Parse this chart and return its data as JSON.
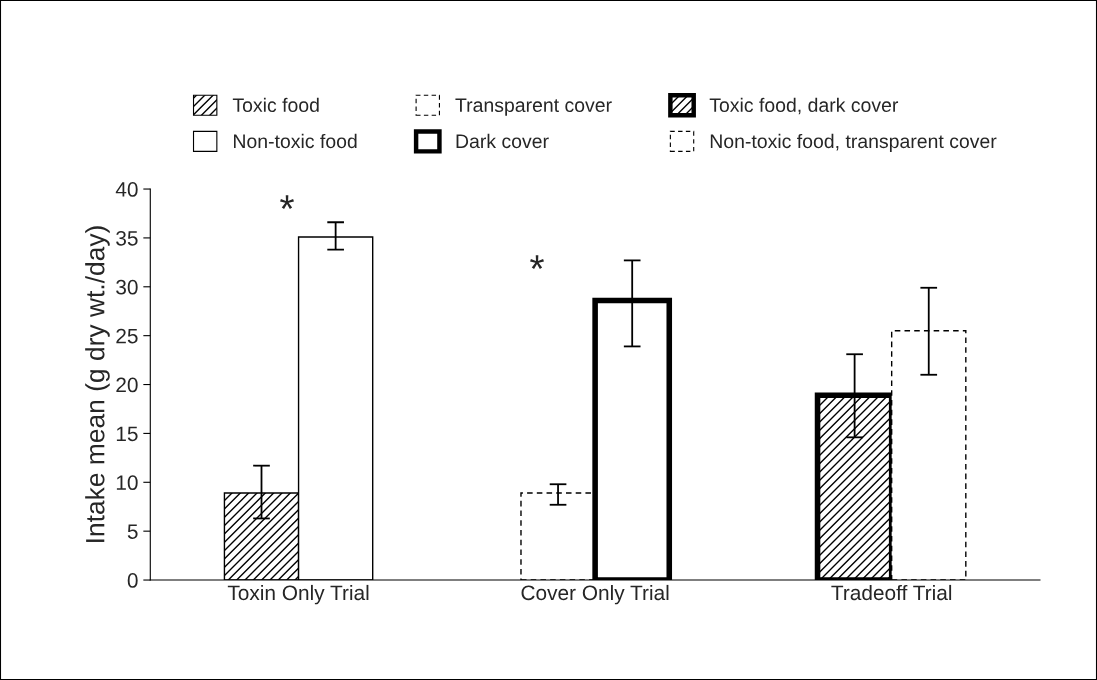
{
  "chart_data": {
    "type": "bar",
    "ylabel": "Intake mean (g dry wt./day)",
    "categories": [
      "Toxin Only Trial",
      "Cover Only Trial",
      "Tradeoff Trial"
    ],
    "series": [
      {
        "name": "Toxic food",
        "color": "#000000",
        "values": [
          8.9,
          null,
          null
        ],
        "errors": [
          [
            6.3,
            11.7
          ],
          null,
          null
        ],
        "line_style": "solid"
      },
      {
        "name": "Non-toxic food",
        "color": "#000000",
        "values": [
          35.1,
          null,
          null
        ],
        "errors": [
          [
            33.8,
            36.6
          ],
          null,
          null
        ],
        "line_style": "solid"
      },
      {
        "name": "Transparent cover",
        "color": "#000000",
        "values": [
          null,
          8.9,
          null
        ],
        "errors": [
          null,
          [
            7.7,
            9.8
          ],
          null
        ],
        "line_style": "dashed"
      },
      {
        "name": "Dark cover",
        "color": "#000000",
        "values": [
          null,
          28.6,
          null
        ],
        "errors": [
          null,
          [
            23.9,
            32.7
          ],
          null
        ],
        "line_style": "solid"
      },
      {
        "name": "Toxic food, dark cover",
        "color": "#000000",
        "values": [
          null,
          null,
          18.9
        ],
        "errors": [
          null,
          null,
          [
            14.6,
            23.1
          ]
        ],
        "line_style": "solid"
      },
      {
        "name": "Non-toxic food, transparent cover",
        "color": "#000000",
        "values": [
          null,
          null,
          25.5
        ],
        "errors": [
          null,
          null,
          [
            21.0,
            29.9
          ]
        ],
        "line_style": "dashed"
      }
    ],
    "ylim": [
      0,
      40
    ],
    "yticks": [
      0,
      5,
      10,
      15,
      20,
      25,
      30,
      35,
      40
    ],
    "grid": false,
    "legend": "top",
    "annotations": [
      "*",
      "*"
    ]
  }
}
